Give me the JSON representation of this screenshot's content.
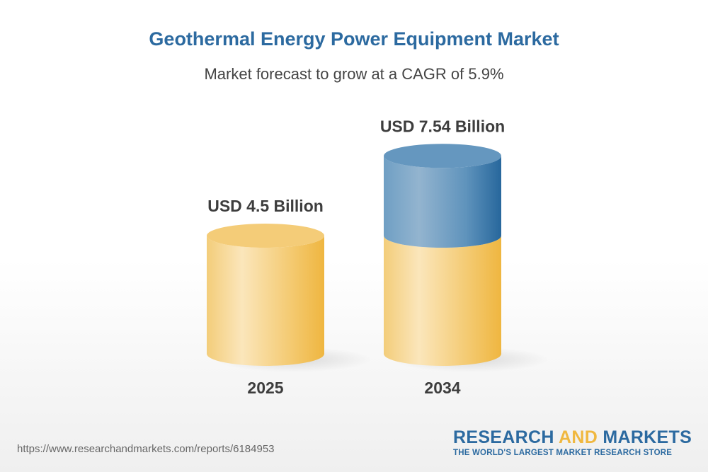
{
  "title": "Geothermal Energy Power Equipment Market",
  "subtitle": "Market forecast to grow at a CAGR of 5.9%",
  "chart_data": {
    "type": "bar",
    "style": "3d-cylinder",
    "categories": [
      "2025",
      "2034"
    ],
    "values": [
      4.5,
      7.54
    ],
    "data_labels": [
      "USD 4.5 Billion",
      "USD 7.54 Billion"
    ],
    "unit": "USD Billion",
    "cagr": "5.9%",
    "colors": {
      "base": "#f2c05a",
      "growth": "#2c6aa0"
    }
  },
  "footer": {
    "url": "https://www.researchandmarkets.com/reports/6184953",
    "logo_part1": "RESEARCH ",
    "logo_part2": "AND",
    "logo_part3": " MARKETS",
    "tagline": "THE WORLD'S LARGEST MARKET RESEARCH STORE"
  }
}
